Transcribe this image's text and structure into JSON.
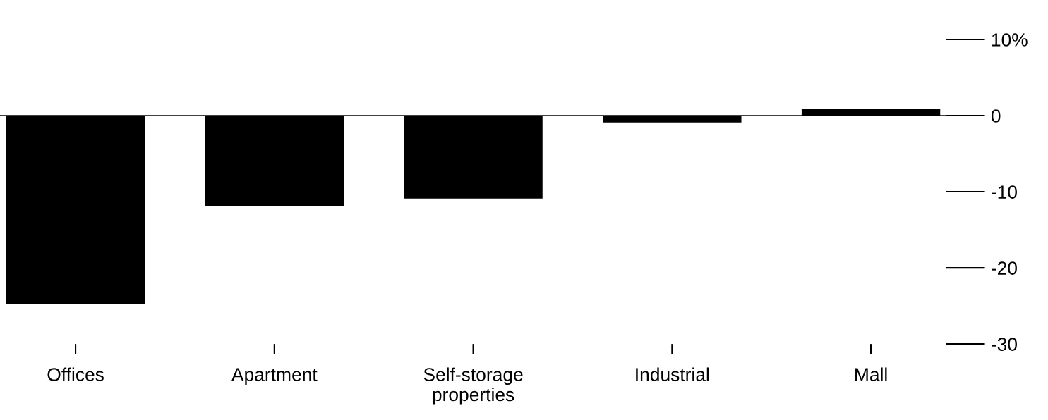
{
  "chart_data": {
    "type": "bar",
    "categories": [
      "Offices",
      "Apartment",
      "Self-storage\nproperties",
      "Industrial",
      "Mall"
    ],
    "values": [
      -24.8,
      -11.9,
      -10.9,
      -0.9,
      0.9
    ],
    "color": "#000000",
    "ylim": [
      -30,
      10
    ],
    "ref_lines": [
      {
        "axis": "y",
        "value": 0,
        "color": "#000000"
      }
    ],
    "yticks": [
      {
        "value": 10,
        "label": "10%"
      },
      0,
      -10,
      -20,
      -30
    ],
    "grid": false,
    "legend": false
  }
}
